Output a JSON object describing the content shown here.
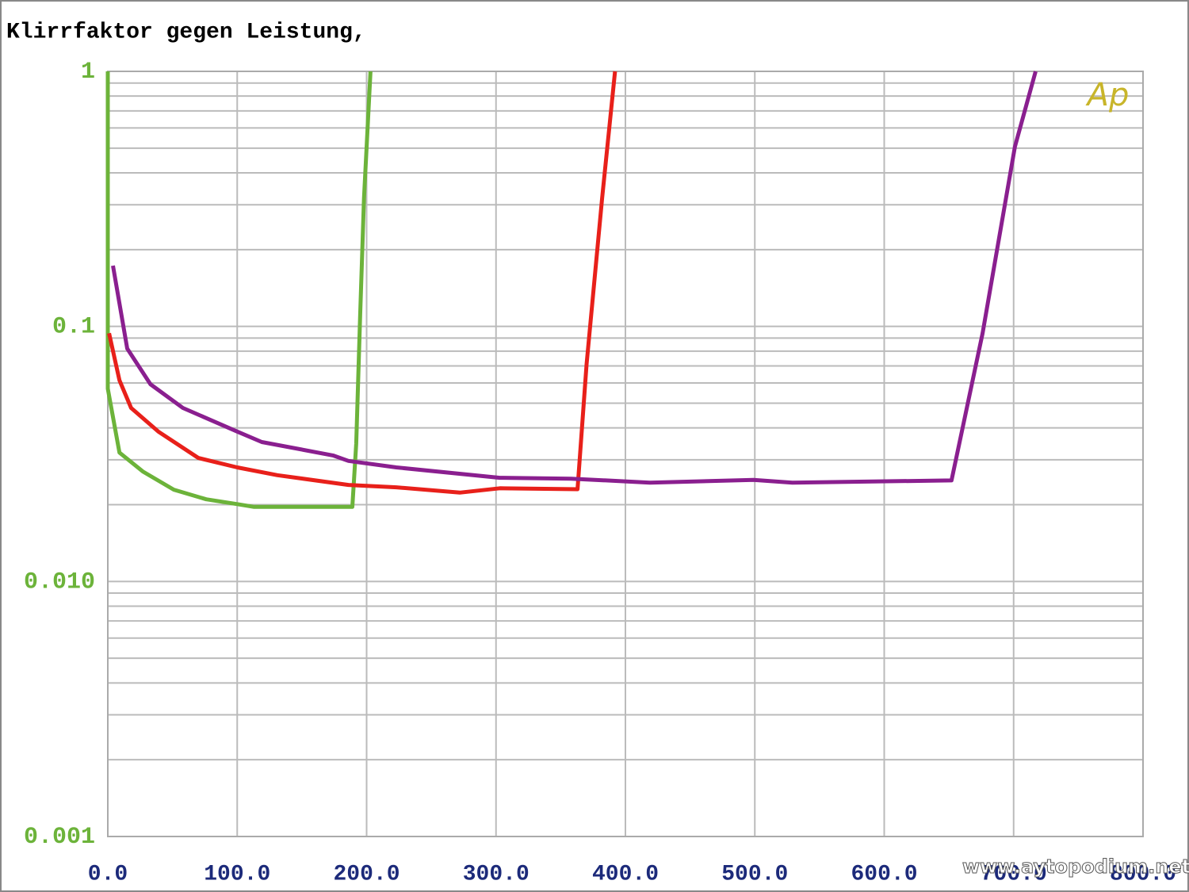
{
  "chart_data": {
    "type": "line",
    "title": "Klirrfaktor gegen Leistung,",
    "log_y": true,
    "grid": true,
    "minor_grid": true,
    "xlim": [
      0,
      800
    ],
    "xticks": [
      {
        "value": 0,
        "label": "0.0"
      },
      {
        "value": 100,
        "label": "100.0"
      },
      {
        "value": 200,
        "label": "200.0"
      },
      {
        "value": 300,
        "label": "300.0"
      },
      {
        "value": 400,
        "label": "400.0"
      },
      {
        "value": 500,
        "label": "500.0"
      },
      {
        "value": 600,
        "label": "600.0"
      },
      {
        "value": 700,
        "label": "700.0"
      },
      {
        "value": 800,
        "label": "800.0"
      }
    ],
    "ylim": [
      0.001,
      1
    ],
    "yticks": [
      1,
      0.1,
      {
        "value": 0.01,
        "label": "0.010"
      },
      0.001
    ],
    "series": [
      {
        "color": "#6cb33a",
        "x": [
          0,
          0,
          9,
          27,
          51,
          76,
          100,
          113,
          189,
          192,
          195,
          198,
          203
        ],
        "values": [
          1,
          0.057,
          0.032,
          0.027,
          0.0229,
          0.021,
          0.0201,
          0.0196,
          0.0196,
          0.0347,
          0.109,
          0.318,
          1
        ]
      },
      {
        "color": "#e8201a",
        "x": [
          1,
          9,
          18,
          39,
          70,
          100,
          131,
          186,
          223,
          272,
          303,
          363,
          370,
          382,
          392
        ],
        "values": [
          0.094,
          0.0615,
          0.0479,
          0.0387,
          0.0305,
          0.028,
          0.0261,
          0.0239,
          0.0234,
          0.0223,
          0.0232,
          0.023,
          0.071,
          0.318,
          1
        ]
      },
      {
        "color": "#8a1f8f",
        "x": [
          4,
          15,
          33,
          58,
          100,
          119,
          174,
          186,
          223,
          303,
          358,
          419,
          499,
          529,
          652,
          676,
          701,
          717
        ],
        "values": [
          0.173,
          0.0819,
          0.0593,
          0.0479,
          0.0387,
          0.0352,
          0.0312,
          0.0297,
          0.028,
          0.0255,
          0.0253,
          0.0244,
          0.025,
          0.0244,
          0.0249,
          0.094,
          0.507,
          1
        ]
      }
    ],
    "logo": "Ap",
    "watermark": "www.aytopodium.net"
  }
}
